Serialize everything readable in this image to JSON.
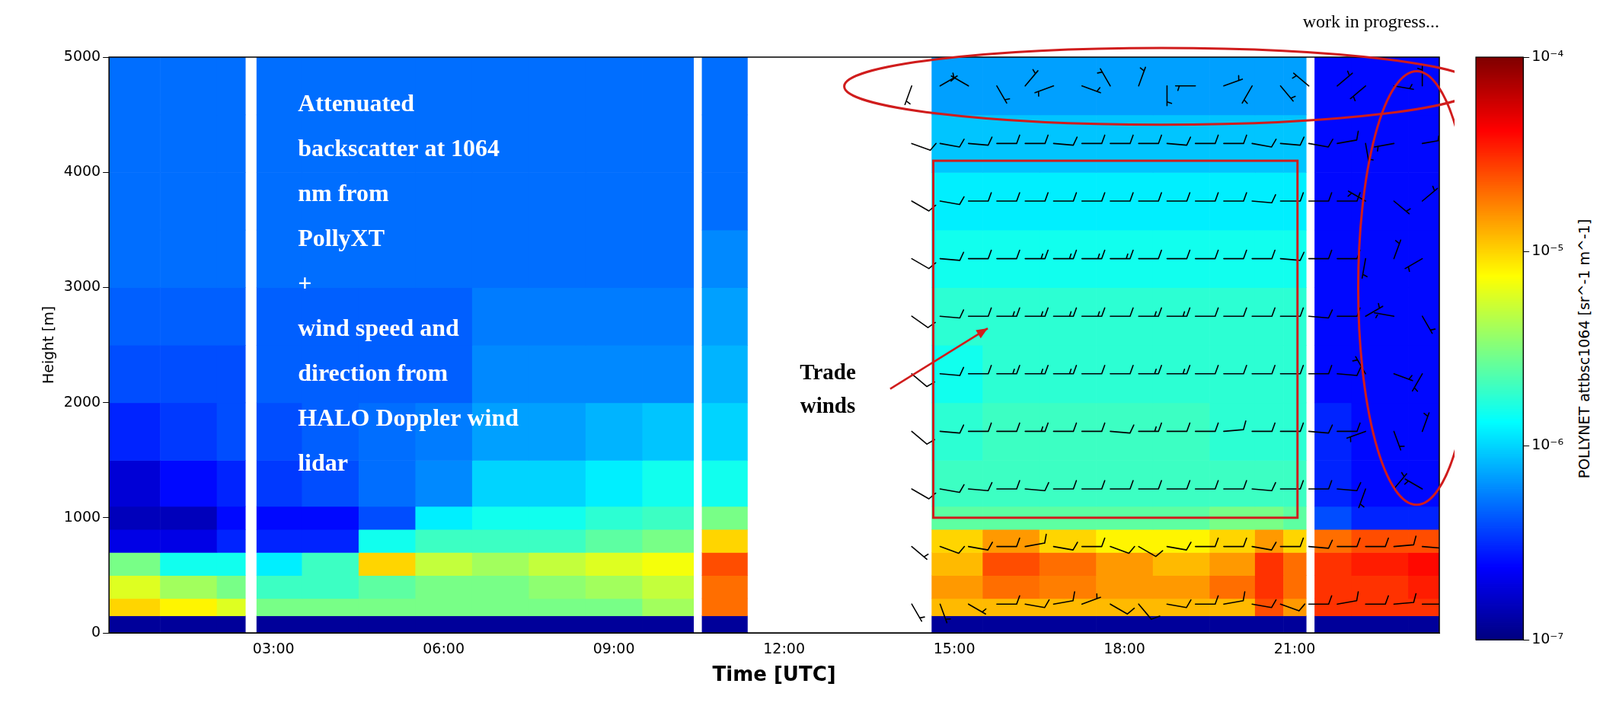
{
  "chart_data": {
    "type": "heatmap",
    "x_label": "Time [UTC]",
    "y_label": "Height [m]",
    "xlim": [
      0.1,
      23.55
    ],
    "xticks": [
      {
        "value": 3,
        "label": "03:00"
      },
      {
        "value": 6,
        "label": "06:00"
      },
      {
        "value": 9,
        "label": "09:00"
      },
      {
        "value": 12,
        "label": "12:00"
      },
      {
        "value": 15,
        "label": "15:00"
      },
      {
        "value": 18,
        "label": "18:00"
      },
      {
        "value": 21,
        "label": "21:00"
      }
    ],
    "ylim": [
      0,
      5000
    ],
    "yticks": [
      0,
      1000,
      2000,
      3000,
      4000,
      5000
    ],
    "grid": false,
    "x_edges": [
      0.1,
      1,
      2,
      2.5,
      2.7,
      3.5,
      4.5,
      5.5,
      6.5,
      7.5,
      8.5,
      9.5,
      10.4,
      10.55,
      11.35,
      14.6,
      15.5,
      16.5,
      17.5,
      18.5,
      19.5,
      20.3,
      20.8,
      21.2,
      21.35,
      22,
      23,
      23.55
    ],
    "y_edges": [
      0,
      150,
      300,
      500,
      700,
      900,
      1100,
      1500,
      2000,
      2500,
      3000,
      3500,
      4000,
      4500,
      5000
    ],
    "cells": [
      [
        1.2e-07,
        1.2e-07,
        1.2e-07,
        null,
        1.2e-07,
        1.2e-07,
        1.2e-07,
        1.2e-07,
        1.2e-07,
        1.2e-07,
        1.2e-07,
        1.2e-07,
        null,
        1.2e-07,
        null,
        1.2e-07,
        1.2e-07,
        1.2e-07,
        1.2e-07,
        1.2e-07,
        1.2e-07,
        1.2e-07,
        1.2e-07,
        null,
        1.2e-07,
        1.2e-07,
        1.2e-07
      ],
      [
        1e-05,
        8e-06,
        6e-06,
        null,
        3e-06,
        3e-06,
        3e-06,
        3e-06,
        3e-06,
        3e-06,
        3e-06,
        4e-06,
        null,
        2e-05,
        null,
        1.2e-05,
        1.2e-05,
        1.2e-05,
        1.2e-05,
        1.2e-05,
        1.2e-05,
        2.5e-05,
        1.5e-05,
        null,
        3e-05,
        3e-05,
        3e-05
      ],
      [
        6e-06,
        4e-06,
        3e-06,
        null,
        2e-06,
        2e-06,
        2.5e-06,
        3e-06,
        3e-06,
        3.5e-06,
        4e-06,
        5e-06,
        null,
        2e-05,
        null,
        1.5e-05,
        2e-05,
        1.8e-05,
        1.5e-05,
        1.5e-05,
        2e-05,
        3e-05,
        2e-05,
        null,
        3e-05,
        3e-05,
        3.5e-05
      ],
      [
        3e-06,
        1.5e-06,
        1.5e-06,
        null,
        1.2e-06,
        2e-06,
        1e-05,
        5e-06,
        4e-06,
        5e-06,
        6e-06,
        7e-06,
        null,
        2.5e-05,
        null,
        1.2e-05,
        2.5e-05,
        2e-05,
        1.5e-05,
        1.2e-05,
        1.5e-05,
        3e-05,
        2e-05,
        null,
        3e-05,
        3.5e-05,
        4e-05
      ],
      [
        2e-07,
        2e-07,
        3e-07,
        null,
        3e-07,
        3e-07,
        1.5e-06,
        2e-06,
        2e-06,
        2e-06,
        2.5e-06,
        3e-06,
        null,
        1e-05,
        null,
        1e-05,
        1.5e-05,
        1e-05,
        8e-06,
        8e-06,
        1e-05,
        1.5e-05,
        1e-05,
        null,
        2e-05,
        2.5e-05,
        2.5e-05
      ],
      [
        1.5e-07,
        1.5e-07,
        2.5e-07,
        null,
        2.5e-07,
        2.5e-07,
        4e-07,
        1.2e-06,
        1.5e-06,
        1.5e-06,
        1.8e-06,
        2e-06,
        null,
        3e-06,
        null,
        2.5e-06,
        2.5e-06,
        2.5e-06,
        2.5e-06,
        2.5e-06,
        3e-06,
        3e-06,
        2.5e-06,
        null,
        4e-07,
        3e-07,
        3e-07
      ],
      [
        1.8e-07,
        2.5e-07,
        3e-07,
        null,
        3.5e-07,
        4e-07,
        5e-07,
        6e-07,
        1e-06,
        1e-06,
        1.2e-06,
        1.5e-06,
        null,
        1.5e-06,
        null,
        2e-06,
        2e-06,
        2e-06,
        2e-06,
        2e-06,
        2e-06,
        2e-06,
        2e-06,
        null,
        3e-07,
        2.5e-07,
        2.5e-07
      ],
      [
        3e-07,
        3.5e-07,
        4e-07,
        null,
        4e-07,
        4.5e-07,
        5e-07,
        5.5e-07,
        7e-07,
        7e-07,
        8e-07,
        9e-07,
        null,
        1e-06,
        null,
        1.8e-06,
        2e-06,
        2e-06,
        2e-06,
        2e-06,
        1.8e-06,
        1.8e-06,
        1.8e-06,
        null,
        3e-07,
        2.5e-07,
        2.5e-07
      ],
      [
        4e-07,
        4e-07,
        4e-07,
        null,
        4.5e-07,
        4.5e-07,
        4.5e-07,
        4.5e-07,
        6e-07,
        6e-07,
        6e-07,
        6e-07,
        null,
        8e-07,
        null,
        1.5e-06,
        1.8e-06,
        1.8e-06,
        1.8e-06,
        1.8e-06,
        1.8e-06,
        1.8e-06,
        1.8e-06,
        null,
        2.5e-07,
        2.5e-07,
        2.5e-07
      ],
      [
        4.5e-07,
        4.5e-07,
        4.5e-07,
        null,
        4.5e-07,
        4.5e-07,
        4.5e-07,
        4.5e-07,
        5.5e-07,
        5.5e-07,
        5.5e-07,
        5.5e-07,
        null,
        7e-07,
        null,
        1.8e-06,
        1.8e-06,
        1.8e-06,
        1.8e-06,
        1.8e-06,
        1.8e-06,
        1.8e-06,
        1.8e-06,
        null,
        2.5e-07,
        2.5e-07,
        2.5e-07
      ],
      [
        5e-07,
        5e-07,
        5e-07,
        null,
        5e-07,
        5e-07,
        5e-07,
        5e-07,
        5e-07,
        5e-07,
        5e-07,
        5e-07,
        null,
        6e-07,
        null,
        1.5e-06,
        1.5e-06,
        1.5e-06,
        1.5e-06,
        1.5e-06,
        1.5e-06,
        1.5e-06,
        1.5e-06,
        null,
        2.5e-07,
        2.5e-07,
        2.5e-07
      ],
      [
        5e-07,
        5e-07,
        5e-07,
        null,
        5e-07,
        5e-07,
        5e-07,
        5e-07,
        5e-07,
        5e-07,
        5e-07,
        5e-07,
        null,
        5e-07,
        null,
        1.2e-06,
        1.2e-06,
        1.2e-06,
        1.2e-06,
        1.2e-06,
        1.2e-06,
        1.2e-06,
        1.2e-06,
        null,
        2.5e-07,
        2.5e-07,
        2.5e-07
      ],
      [
        5e-07,
        5e-07,
        5e-07,
        null,
        5e-07,
        5e-07,
        5e-07,
        5e-07,
        5e-07,
        5e-07,
        5e-07,
        5e-07,
        null,
        5e-07,
        null,
        9e-07,
        9e-07,
        9e-07,
        9e-07,
        9e-07,
        9e-07,
        9e-07,
        9e-07,
        null,
        2.5e-07,
        2.5e-07,
        2.5e-07
      ],
      [
        5e-07,
        5e-07,
        5e-07,
        null,
        5e-07,
        5e-07,
        5e-07,
        5e-07,
        5e-07,
        5e-07,
        5e-07,
        5e-07,
        null,
        5e-07,
        null,
        7e-07,
        7e-07,
        7e-07,
        7e-07,
        7e-07,
        7e-07,
        7e-07,
        7e-07,
        null,
        2.5e-07,
        2.5e-07,
        2.5e-07
      ]
    ],
    "colorbar": {
      "label": "POLLYNET attbsc1064 [sr^-1 m^-1]",
      "log": true,
      "range": [
        1e-07,
        0.0001
      ],
      "ticks": [
        {
          "value": 1e-07,
          "label": "10⁻⁷"
        },
        {
          "value": 1e-06,
          "label": "10⁻⁶"
        },
        {
          "value": 1e-05,
          "label": "10⁻⁵"
        },
        {
          "value": 0.0001,
          "label": "10⁻⁴"
        }
      ]
    },
    "wind": {
      "x": [
        14.25,
        14.75,
        15.25,
        15.75,
        16.25,
        16.75,
        17.25,
        17.75,
        18.25,
        18.75,
        19.25,
        19.75,
        20.25,
        20.75,
        21.25,
        21.75,
        22.25,
        22.75,
        23.25
      ],
      "y": [
        250,
        750,
        1250,
        1750,
        2250,
        2750,
        3250,
        3750,
        4250,
        4750
      ],
      "speed": [
        [
          6,
          5,
          7,
          8,
          9,
          8,
          7,
          8,
          9,
          8,
          8,
          9,
          9,
          10,
          9,
          8,
          9,
          10,
          10
        ],
        [
          7,
          8,
          9,
          10,
          10,
          9,
          9,
          10,
          10,
          9,
          10,
          10,
          10,
          10,
          10,
          10,
          10,
          10,
          10
        ],
        [
          9,
          10,
          11,
          12,
          12,
          12,
          12,
          12,
          12,
          12,
          12,
          12,
          12,
          12,
          11,
          10,
          4,
          3,
          4
        ],
        [
          9,
          10,
          12,
          12,
          13,
          12,
          12,
          12,
          13,
          12,
          12,
          12,
          12,
          12,
          11,
          10,
          3,
          4,
          3
        ],
        [
          10,
          11,
          12,
          13,
          13,
          13,
          12,
          12,
          13,
          13,
          12,
          12,
          12,
          12,
          11,
          11,
          4,
          3,
          5
        ],
        [
          10,
          11,
          12,
          13,
          13,
          13,
          13,
          12,
          13,
          13,
          12,
          12,
          12,
          12,
          12,
          11,
          3,
          4,
          3
        ],
        [
          10,
          11,
          12,
          12,
          13,
          13,
          13,
          13,
          12,
          12,
          12,
          12,
          12,
          12,
          11,
          11,
          4,
          3,
          4
        ],
        [
          9,
          10,
          11,
          12,
          12,
          12,
          12,
          12,
          12,
          12,
          11,
          11,
          11,
          11,
          10,
          10,
          3,
          5,
          3
        ],
        [
          8,
          9,
          10,
          10,
          10,
          10,
          10,
          10,
          10,
          10,
          10,
          10,
          9,
          9,
          8,
          8,
          3,
          4,
          3
        ],
        [
          4,
          3,
          5,
          4,
          3,
          4,
          5,
          3,
          4,
          3,
          5,
          4,
          3,
          4,
          5,
          3,
          4,
          3,
          4
        ]
      ],
      "direction": [
        [
          150,
          160,
          120,
          90,
          100,
          80,
          70,
          120,
          140,
          100,
          90,
          80,
          100,
          110,
          90,
          80,
          90,
          85,
          90
        ],
        [
          130,
          110,
          100,
          90,
          80,
          100,
          90,
          110,
          120,
          100,
          90,
          90,
          100,
          90,
          95,
          90,
          90,
          85,
          95
        ],
        [
          120,
          100,
          95,
          90,
          95,
          90,
          90,
          90,
          90,
          90,
          90,
          90,
          95,
          90,
          90,
          95,
          200,
          40,
          300
        ],
        [
          130,
          95,
          90,
          90,
          90,
          90,
          90,
          95,
          90,
          90,
          90,
          85,
          90,
          90,
          95,
          90,
          250,
          160,
          20
        ],
        [
          130,
          95,
          90,
          90,
          90,
          90,
          90,
          90,
          90,
          90,
          90,
          90,
          90,
          90,
          90,
          95,
          330,
          110,
          210
        ],
        [
          125,
          95,
          90,
          90,
          90,
          90,
          90,
          90,
          90,
          90,
          90,
          90,
          90,
          90,
          95,
          90,
          60,
          280,
          150
        ],
        [
          120,
          95,
          90,
          90,
          90,
          90,
          90,
          90,
          90,
          90,
          90,
          90,
          90,
          95,
          90,
          90,
          190,
          20,
          240
        ],
        [
          120,
          100,
          90,
          90,
          90,
          90,
          90,
          90,
          90,
          90,
          90,
          90,
          95,
          90,
          90,
          90,
          300,
          130,
          50
        ],
        [
          110,
          100,
          95,
          90,
          90,
          95,
          90,
          90,
          90,
          95,
          90,
          90,
          100,
          95,
          100,
          80,
          170,
          260,
          80
        ],
        [
          200,
          60,
          300,
          150,
          40,
          250,
          110,
          330,
          20,
          180,
          270,
          70,
          210,
          140,
          310,
          50,
          230,
          100,
          0
        ]
      ]
    },
    "annotations": {
      "description": [
        "Attenuated",
        "backscatter at 1064",
        "nm from",
        "PollyXT",
        "+",
        "wind speed and",
        "direction from",
        "HALO Doppler wind",
        "lidar"
      ],
      "trade_winds": [
        "Trade",
        "winds"
      ],
      "note": "work in progress..."
    }
  }
}
